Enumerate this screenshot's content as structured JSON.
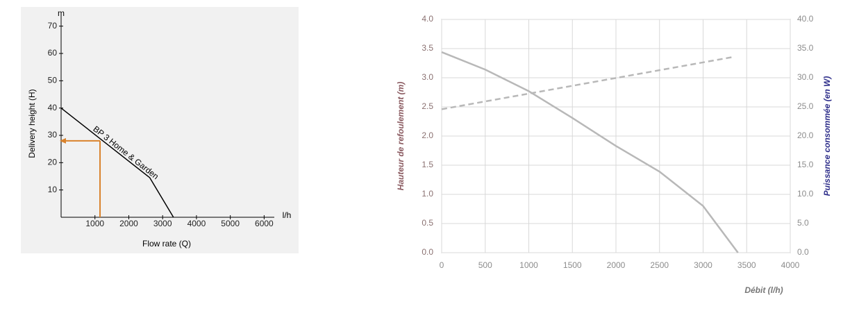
{
  "chart_data": [
    {
      "type": "line",
      "y_unit": "m",
      "x_unit": "l/h",
      "ylabel": "Delivery height (H)",
      "xlabel": "Flow rate (Q)",
      "xlim": [
        0,
        6300
      ],
      "ylim": [
        0,
        75
      ],
      "xticks": [
        1000,
        2000,
        3000,
        4000,
        5000,
        6000
      ],
      "yticks": [
        10,
        20,
        30,
        40,
        50,
        60,
        70
      ],
      "grid": false,
      "series": [
        {
          "name": "BP 3 Home & Garden",
          "color": "#000000",
          "x": [
            0,
            2620,
            3320
          ],
          "values": [
            40,
            14.5,
            0
          ]
        }
      ],
      "marker": {
        "x": 1150,
        "y": 28,
        "color": "#d9822b"
      }
    },
    {
      "type": "line",
      "ylabel": "Hauteur de refoulement (m)",
      "y2label": "Puissance consommée (en W)",
      "xlabel": "Débit (l/h)",
      "xlim": [
        0,
        4000
      ],
      "ylim": [
        0,
        4.0
      ],
      "y2lim": [
        0,
        40
      ],
      "xticks": [
        0,
        500,
        1000,
        1500,
        2000,
        2500,
        3000,
        3500,
        4000
      ],
      "yticks": [
        {
          "value": 0,
          "label": "0.0"
        },
        0.5,
        {
          "value": 1,
          "label": "1.0"
        },
        1.5,
        {
          "value": 2,
          "label": "2.0"
        },
        2.5,
        {
          "value": 3,
          "label": "3.0"
        },
        3.5,
        {
          "value": 4,
          "label": "4.0"
        }
      ],
      "y2ticks": [
        {
          "value": 0,
          "label": "0.0"
        },
        {
          "value": 5,
          "label": "5.0"
        },
        {
          "value": 10,
          "label": "10.0"
        },
        {
          "value": 15,
          "label": "15.0"
        },
        {
          "value": 20,
          "label": "20.0"
        },
        {
          "value": 25,
          "label": "25.0"
        },
        {
          "value": 30,
          "label": "30.0"
        },
        {
          "value": 35,
          "label": "35.0"
        },
        {
          "value": 40,
          "label": "40.0"
        }
      ],
      "grid": true,
      "series": [
        {
          "color": "#b8b8b8",
          "style": "solid",
          "x": [
            0,
            500,
            1000,
            1500,
            2000,
            2500,
            3000,
            3400
          ],
          "values": [
            3.44,
            3.14,
            2.77,
            2.31,
            1.83,
            1.39,
            0.8,
            0
          ]
        },
        {
          "color": "#b8b8b8",
          "style": "dashed",
          "axis": "y2",
          "x": [
            0,
            3360
          ],
          "values": [
            24.6,
            33.6
          ]
        }
      ]
    }
  ]
}
